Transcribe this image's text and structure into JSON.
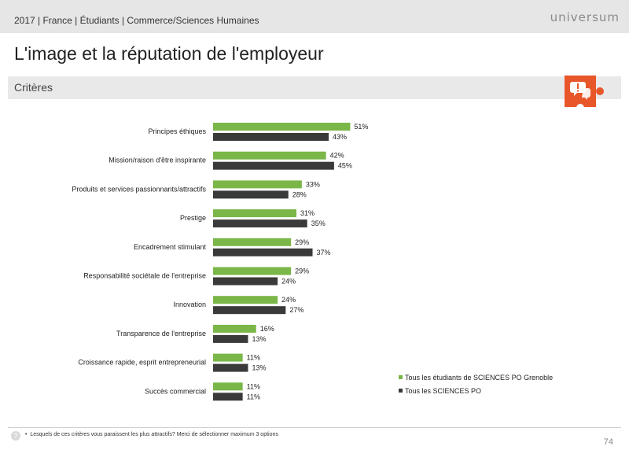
{
  "header": {
    "breadcrumb": "2017 | France | Étudiants | Commerce/Sciences Humaines",
    "brand": "universum"
  },
  "title": "L'image et la réputation de l'employeur",
  "section_label": "Critères",
  "footnote": "Lesquels de ces critères vous paraissent les plus attractifs? Merci de sélectionner maximum 3 options",
  "page_number": "74",
  "colors": {
    "green": "#7ab648",
    "dark": "#3a3a3a",
    "orange": "#e8572a"
  },
  "chart_data": {
    "type": "bar",
    "orientation": "horizontal",
    "categories": [
      "Principes éthiques",
      "Mission/raison d'être inspirante",
      "Produits et services passionnants/attractifs",
      "Prestige",
      "Encadrement stimulant",
      "Responsabilité sociétale de l'entreprise",
      "Innovation",
      "Transparence de l'entreprise",
      "Croissance rapide, esprit entrepreneurial",
      "Succès commercial"
    ],
    "series": [
      {
        "name": "Tous les étudiants de SCIENCES PO Grenoble",
        "color": "#7ab648",
        "values": [
          51,
          42,
          33,
          31,
          29,
          29,
          24,
          16,
          11,
          11
        ]
      },
      {
        "name": "Tous les SCIENCES PO",
        "color": "#3a3a3a",
        "values": [
          43,
          45,
          28,
          35,
          37,
          24,
          27,
          13,
          13,
          11
        ]
      }
    ],
    "value_suffix": "%",
    "legend_position": "bottom-right",
    "grid": false
  }
}
